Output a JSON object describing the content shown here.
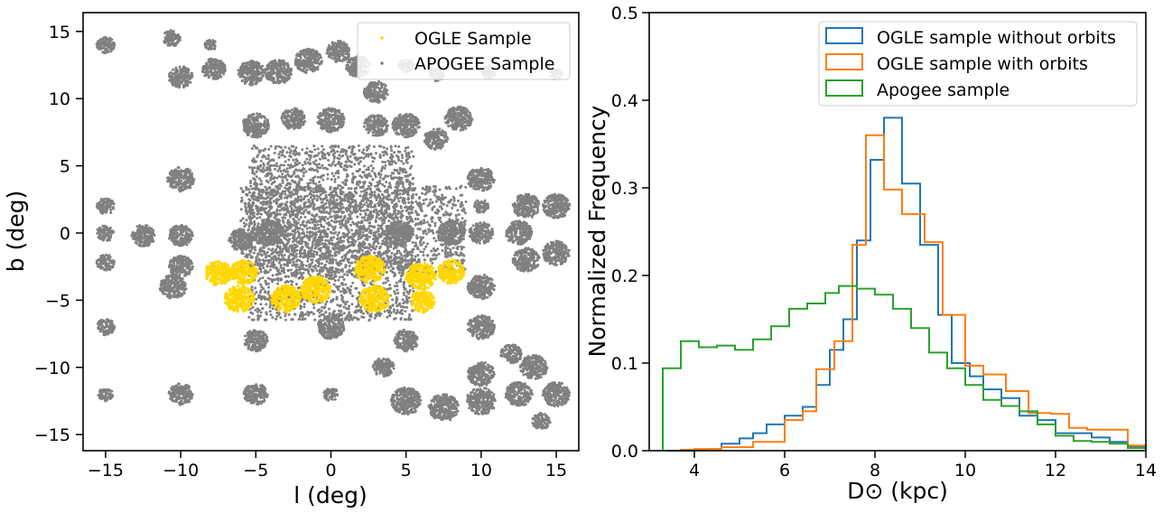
{
  "chart_data": [
    {
      "type": "scatter",
      "title": "",
      "xlabel": "l (deg)",
      "ylabel": "b (deg)",
      "xlim": [
        -16.5,
        16.5
      ],
      "ylim": [
        -16.2,
        16.4
      ],
      "xticks": [
        "−15",
        "−10",
        "−5",
        "0",
        "5",
        "10",
        "15"
      ],
      "xtick_values": [
        -15,
        -10,
        -5,
        0,
        5,
        10,
        15
      ],
      "yticks": [
        "−15",
        "−10",
        "−5",
        "0",
        "5",
        "10",
        "15"
      ],
      "ytick_values": [
        -15,
        -10,
        -5,
        0,
        5,
        10,
        15
      ],
      "grid": false,
      "legend_position": "top-right",
      "series": [
        {
          "name": "OGLE Sample",
          "color": "#ffd700",
          "clusters": [
            {
              "l": -7.5,
              "b": -3.0,
              "r": 0.9
            },
            {
              "l": -5.8,
              "b": -2.9,
              "r": 0.9
            },
            {
              "l": -6.1,
              "b": -4.9,
              "r": 1.0
            },
            {
              "l": -3.0,
              "b": -4.9,
              "r": 1.0
            },
            {
              "l": -1.0,
              "b": -4.2,
              "r": 1.0
            },
            {
              "l": 2.6,
              "b": -2.7,
              "r": 1.0
            },
            {
              "l": 2.9,
              "b": -4.9,
              "r": 1.0
            },
            {
              "l": 6.0,
              "b": -3.2,
              "r": 1.0
            },
            {
              "l": 6.1,
              "b": -5.1,
              "r": 0.8
            },
            {
              "l": 8.0,
              "b": -2.9,
              "r": 0.9
            }
          ]
        },
        {
          "name": "APOGEE Sample",
          "color": "#808080",
          "clusters": [
            {
              "l": -15.0,
              "b": 14.0,
              "r": 0.6
            },
            {
              "l": -10.6,
              "b": 14.5,
              "r": 0.6
            },
            {
              "l": -8.0,
              "b": 14.0,
              "r": 0.4
            },
            {
              "l": -10.0,
              "b": 11.6,
              "r": 0.8
            },
            {
              "l": -7.8,
              "b": 12.2,
              "r": 0.8
            },
            {
              "l": -5.3,
              "b": 11.9,
              "r": 0.9
            },
            {
              "l": -3.5,
              "b": 12.0,
              "r": 0.9
            },
            {
              "l": -1.5,
              "b": 12.8,
              "r": 0.9
            },
            {
              "l": 0.5,
              "b": 13.5,
              "r": 0.8
            },
            {
              "l": 1.8,
              "b": 12.4,
              "r": 0.8
            },
            {
              "l": 3.0,
              "b": 10.5,
              "r": 0.8
            },
            {
              "l": 5.0,
              "b": 12.5,
              "r": 0.5
            },
            {
              "l": 7.0,
              "b": 11.8,
              "r": 0.5
            },
            {
              "l": 10.5,
              "b": 12.0,
              "r": 0.5
            },
            {
              "l": 15.0,
              "b": 11.8,
              "r": 0.4
            },
            {
              "l": -5.0,
              "b": 8.0,
              "r": 0.9
            },
            {
              "l": -2.5,
              "b": 8.5,
              "r": 0.8
            },
            {
              "l": 0.0,
              "b": 8.4,
              "r": 0.9
            },
            {
              "l": 3.0,
              "b": 8.0,
              "r": 0.8
            },
            {
              "l": 5.0,
              "b": 8.0,
              "r": 0.9
            },
            {
              "l": 7.0,
              "b": 7.0,
              "r": 0.8
            },
            {
              "l": 8.5,
              "b": 8.5,
              "r": 0.9
            },
            {
              "l": -10.0,
              "b": 4.0,
              "r": 0.9
            },
            {
              "l": 10.0,
              "b": 4.0,
              "r": 0.9
            },
            {
              "l": -15.0,
              "b": 2.0,
              "r": 0.6
            },
            {
              "l": 15.0,
              "b": 2.0,
              "r": 0.9
            },
            {
              "l": 13.0,
              "b": 2.0,
              "r": 0.9
            },
            {
              "l": 10.0,
              "b": 2.0,
              "r": 0.5
            },
            {
              "l": -15.0,
              "b": 0.0,
              "r": 0.6
            },
            {
              "l": -12.5,
              "b": -0.2,
              "r": 0.8
            },
            {
              "l": -10.0,
              "b": -0.2,
              "r": 0.8
            },
            {
              "l": -6.0,
              "b": -0.5,
              "r": 0.8
            },
            {
              "l": -4.0,
              "b": 0.0,
              "r": 0.9
            },
            {
              "l": 4.5,
              "b": 0.0,
              "r": 0.9
            },
            {
              "l": 8.0,
              "b": 0.0,
              "r": 0.9
            },
            {
              "l": 10.0,
              "b": 0.0,
              "r": 0.8
            },
            {
              "l": 12.5,
              "b": 0.0,
              "r": 0.9
            },
            {
              "l": 15.0,
              "b": -1.5,
              "r": 0.9
            },
            {
              "l": -15.0,
              "b": -2.2,
              "r": 0.6
            },
            {
              "l": -10.0,
              "b": -2.5,
              "r": 0.8
            },
            {
              "l": -10.5,
              "b": -4.0,
              "r": 0.9
            },
            {
              "l": 13.0,
              "b": -2.0,
              "r": 0.9
            },
            {
              "l": 10.0,
              "b": -4.0,
              "r": 0.9
            },
            {
              "l": -15.0,
              "b": -7.0,
              "r": 0.6
            },
            {
              "l": -5.0,
              "b": -8.0,
              "r": 0.8
            },
            {
              "l": 0.0,
              "b": -7.0,
              "r": 0.9
            },
            {
              "l": 5.0,
              "b": -8.0,
              "r": 0.8
            },
            {
              "l": 10.0,
              "b": -7.0,
              "r": 0.9
            },
            {
              "l": 12.0,
              "b": -9.0,
              "r": 0.7
            },
            {
              "l": 3.5,
              "b": -10.0,
              "r": 0.7
            },
            {
              "l": 10.0,
              "b": -10.5,
              "r": 0.9
            },
            {
              "l": 13.5,
              "b": -10.0,
              "r": 0.9
            },
            {
              "l": -15.0,
              "b": -12.0,
              "r": 0.5
            },
            {
              "l": -10.0,
              "b": -12.0,
              "r": 0.8
            },
            {
              "l": -5.0,
              "b": -12.0,
              "r": 0.8
            },
            {
              "l": 0.0,
              "b": -12.0,
              "r": 0.5
            },
            {
              "l": 5.0,
              "b": -12.5,
              "r": 1.0
            },
            {
              "l": 7.5,
              "b": -13.0,
              "r": 1.0
            },
            {
              "l": 10.0,
              "b": -12.5,
              "r": 1.0
            },
            {
              "l": 12.5,
              "b": -12.0,
              "r": 0.9
            },
            {
              "l": 15.0,
              "b": -12.0,
              "r": 0.9
            },
            {
              "l": 14.0,
              "b": -14.0,
              "r": 0.6
            }
          ],
          "regions": [
            {
              "l": [
                -5.5,
                5.5
              ],
              "b": [
                -6.5,
                6.5
              ]
            },
            {
              "l": [
                -6.0,
                9.0
              ],
              "b": [
                -3.0,
                3.5
              ]
            }
          ]
        }
      ]
    },
    {
      "type": "line",
      "title": "",
      "xlabel": "D⊙ (kpc)",
      "ylabel": "Normalized Frequency",
      "xlim": [
        3.0,
        14.0
      ],
      "ylim": [
        0.0,
        0.5
      ],
      "xticks": [
        "4",
        "6",
        "8",
        "10",
        "12",
        "14"
      ],
      "xtick_values": [
        4,
        6,
        8,
        10,
        12,
        14
      ],
      "yticks": [
        "0.0",
        "0.1",
        "0.2",
        "0.3",
        "0.4",
        "0.5"
      ],
      "ytick_values": [
        0.0,
        0.1,
        0.2,
        0.3,
        0.4,
        0.5
      ],
      "grid": false,
      "legend_position": "top-right",
      "series": [
        {
          "name": "OGLE sample without orbits",
          "color": "#1f77b4",
          "bins": [
            3.4,
            3.7,
            4.0,
            4.3,
            4.6,
            5.0,
            5.3,
            5.6,
            6.0,
            6.4,
            6.7,
            7.0,
            7.3,
            7.6,
            7.9,
            8.2,
            8.6,
            9.0,
            9.4,
            9.7,
            10.1,
            10.4,
            10.8,
            11.2,
            11.6,
            12.0,
            12.4,
            12.8,
            13.2,
            13.6,
            14.0
          ],
          "values": [
            0.0,
            0.0,
            0.001,
            0.002,
            0.008,
            0.014,
            0.02,
            0.03,
            0.04,
            0.05,
            0.075,
            0.115,
            0.15,
            0.24,
            0.332,
            0.38,
            0.305,
            0.235,
            0.155,
            0.1,
            0.085,
            0.07,
            0.06,
            0.04,
            0.035,
            0.02,
            0.02,
            0.015,
            0.01,
            0.005
          ]
        },
        {
          "name": "OGLE sample with orbits",
          "color": "#ff7f0e",
          "bins": [
            3.7,
            4.0,
            4.6,
            5.3,
            6.0,
            6.4,
            6.7,
            7.1,
            7.5,
            7.8,
            8.2,
            8.6,
            9.1,
            9.5,
            10.0,
            10.4,
            10.9,
            11.4,
            11.9,
            12.3,
            12.7,
            13.2,
            13.6,
            14.0
          ],
          "values": [
            0.001,
            0.002,
            0.004,
            0.01,
            0.035,
            0.045,
            0.093,
            0.125,
            0.235,
            0.36,
            0.298,
            0.27,
            0.238,
            0.155,
            0.097,
            0.087,
            0.068,
            0.043,
            0.042,
            0.026,
            0.024,
            0.024,
            0.006
          ]
        },
        {
          "name": "Apogee sample",
          "color": "#2ca02c",
          "bins": [
            3.3,
            3.7,
            4.1,
            4.5,
            4.9,
            5.3,
            5.7,
            6.1,
            6.5,
            6.9,
            7.2,
            7.6,
            8.0,
            8.4,
            8.8,
            9.2,
            9.6,
            10.0,
            10.4,
            10.8,
            11.2,
            11.6,
            12.0,
            12.4,
            12.8,
            13.2,
            13.6,
            14.0
          ],
          "values": [
            0.094,
            0.125,
            0.118,
            0.12,
            0.115,
            0.127,
            0.142,
            0.162,
            0.168,
            0.18,
            0.188,
            0.185,
            0.178,
            0.162,
            0.14,
            0.112,
            0.094,
            0.075,
            0.058,
            0.051,
            0.045,
            0.03,
            0.017,
            0.011,
            0.01,
            0.008,
            0.003
          ]
        }
      ]
    }
  ]
}
